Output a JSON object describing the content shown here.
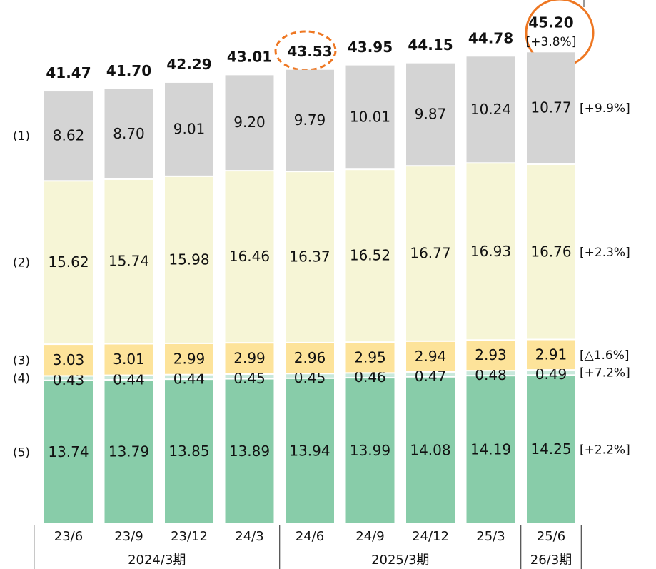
{
  "chart_data": {
    "type": "stacked_bar",
    "categories": [
      "23/6",
      "23/9",
      "23/12",
      "24/3",
      "24/6",
      "24/9",
      "24/12",
      "25/3",
      "25/6"
    ],
    "groups": [
      {
        "label": "2024/3期",
        "count": 4
      },
      {
        "label": "2025/3期",
        "count": 4
      },
      {
        "label": "26/3期",
        "count": 1
      }
    ],
    "series": [
      {
        "name": "(5)",
        "color": "#88cca9",
        "change": "[+2.2%]",
        "values": [
          13.74,
          13.79,
          13.85,
          13.89,
          13.94,
          13.99,
          14.08,
          14.19,
          14.25
        ],
        "value_labels": [
          "13.74",
          "13.79",
          "13.85",
          "13.89",
          "13.94",
          "13.99",
          "14.08",
          "14.19",
          "14.25"
        ]
      },
      {
        "name": "(4)",
        "color": "#c9e8db",
        "change": "[+7.2%]",
        "values": [
          0.43,
          0.44,
          0.44,
          0.45,
          0.45,
          0.46,
          0.47,
          0.48,
          0.49
        ],
        "value_labels": [
          "0.43",
          "0.44",
          "0.44",
          "0.45",
          "0.45",
          "0.46",
          "0.47",
          "0.48",
          "0.49"
        ]
      },
      {
        "name": "(3)",
        "color": "#fde39a",
        "change": "[△1.6%]",
        "values": [
          3.03,
          3.01,
          2.99,
          2.99,
          2.96,
          2.95,
          2.94,
          2.93,
          2.91
        ],
        "value_labels": [
          "3.03",
          "3.01",
          "2.99",
          "2.99",
          "2.96",
          "2.95",
          "2.94",
          "2.93",
          "2.91"
        ]
      },
      {
        "name": "(2)",
        "color": "#f6f5d6",
        "change": "[+2.3%]",
        "values": [
          15.62,
          15.74,
          15.98,
          16.46,
          16.37,
          16.52,
          16.77,
          16.93,
          16.76
        ],
        "value_labels": [
          "15.62",
          "15.74",
          "15.98",
          "16.46",
          "16.37",
          "16.52",
          "16.77",
          "16.93",
          "16.76"
        ]
      },
      {
        "name": "(1)",
        "color": "#d4d4d4",
        "change": "[+9.9%]",
        "values": [
          8.62,
          8.7,
          9.01,
          9.2,
          9.79,
          10.01,
          9.87,
          10.24,
          10.77
        ],
        "value_labels": [
          "8.62",
          "8.70",
          "9.01",
          "9.20",
          "9.79",
          "10.01",
          "9.87",
          "10.24",
          "10.77"
        ]
      }
    ],
    "totals": {
      "values": [
        41.47,
        41.7,
        42.29,
        43.01,
        43.53,
        43.95,
        44.15,
        44.78,
        45.2
      ],
      "value_labels": [
        "41.47",
        "41.70",
        "42.29",
        "43.01",
        "43.53",
        "43.95",
        "44.15",
        "44.78",
        "45.20"
      ],
      "change": "[+3.8%]"
    }
  }
}
